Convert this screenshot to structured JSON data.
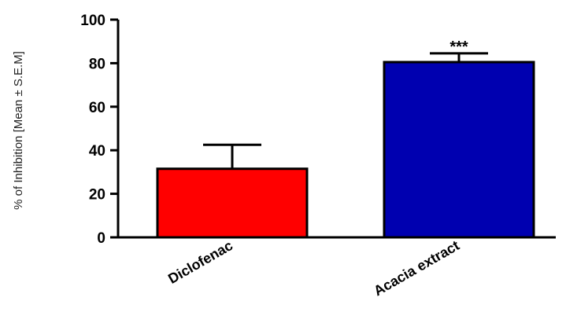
{
  "chart_data": {
    "type": "bar",
    "categories": [
      "Diclofenac",
      "Acacia extract"
    ],
    "values": [
      31.5,
      80.5
    ],
    "errors": [
      11,
      4
    ],
    "bar_colors": [
      "#ff0000",
      "#0000b0"
    ],
    "annotations": [
      "",
      "***"
    ],
    "ylabel": "% of Inhibition [Mean ± S.E.M]",
    "ylim": [
      0,
      100
    ],
    "yticks": [
      "0",
      "20",
      "40",
      "60",
      "80",
      "100"
    ],
    "grid": false
  }
}
